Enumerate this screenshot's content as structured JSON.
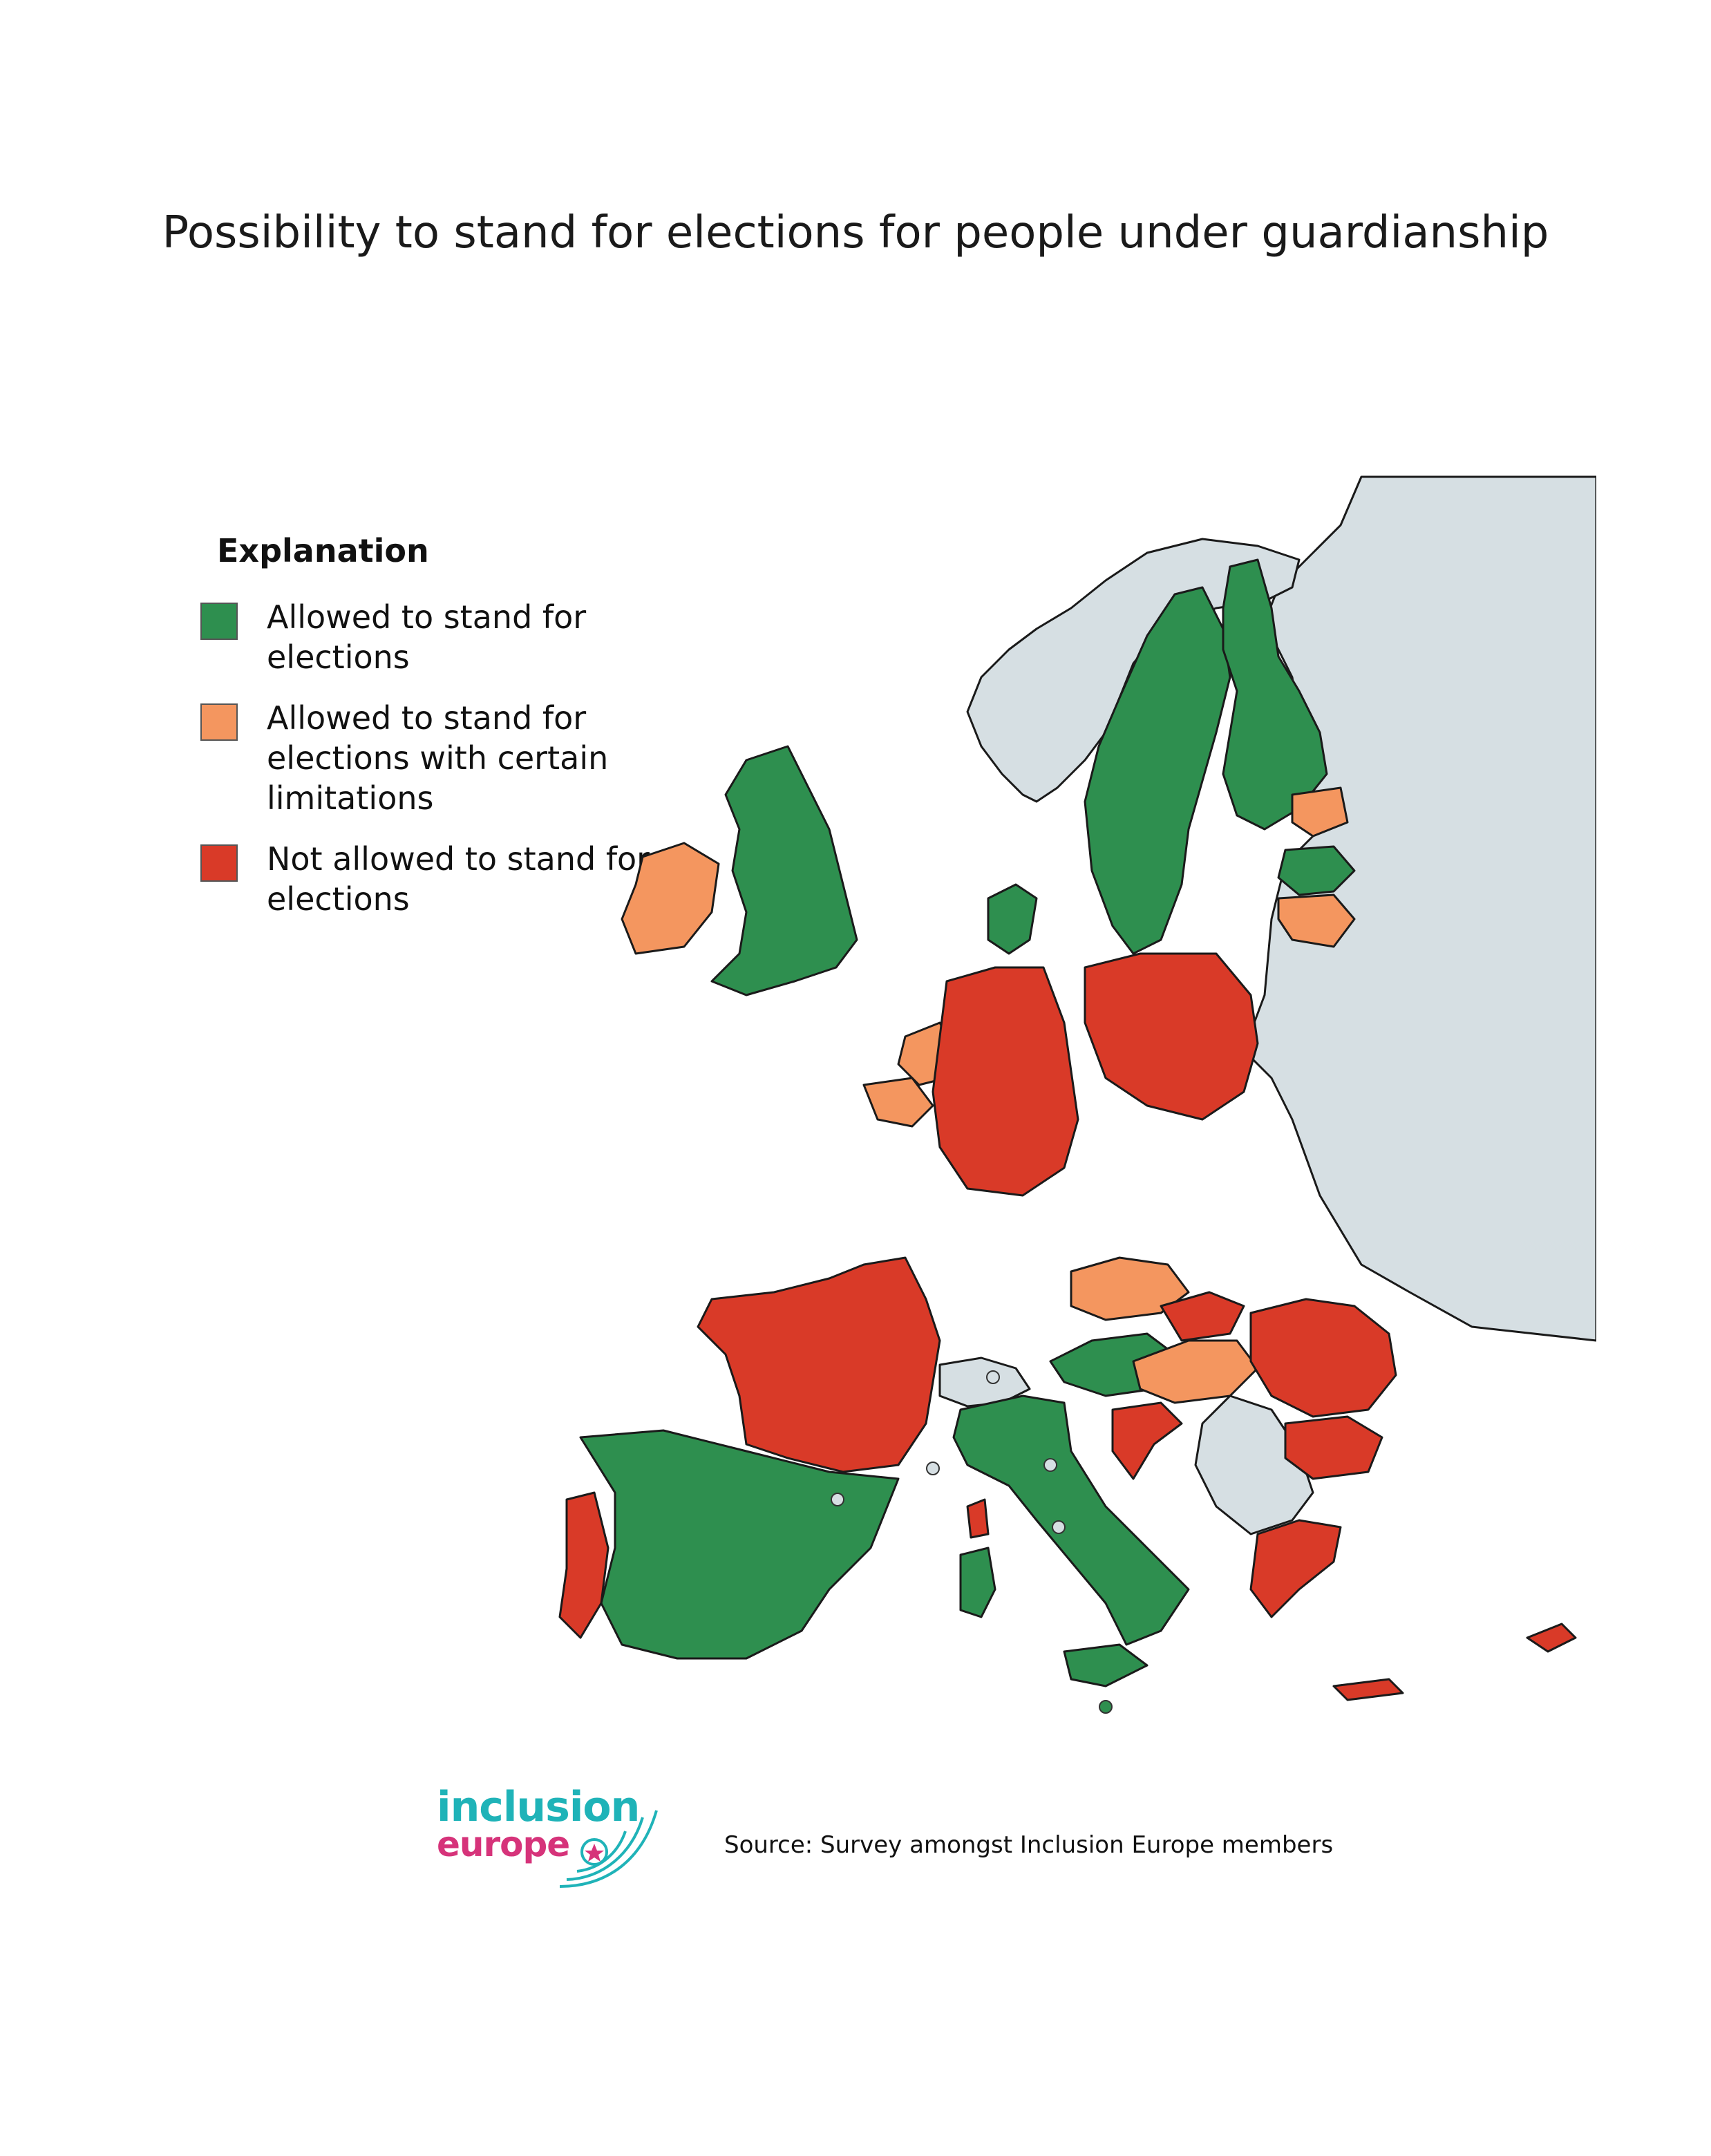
{
  "title": "Possibility to stand for elections for people under guardianship",
  "legend": {
    "heading": "Explanation",
    "items": [
      {
        "label": "Allowed to stand for elections",
        "color": "#2e8f4f"
      },
      {
        "label": "Allowed to stand for elections with certain limitations",
        "color": "#f4965f"
      },
      {
        "label": "Not allowed to stand for elections",
        "color": "#d93a28"
      }
    ]
  },
  "map_colors": {
    "allowed": "#2e8f4f",
    "limited": "#f4965f",
    "not_allowed": "#d93a28",
    "no_data": "#d6dfe3"
  },
  "logo": {
    "line1": "inclusion",
    "line2": "europe"
  },
  "source": "Source: Survey amongst Inclusion Europe members"
}
